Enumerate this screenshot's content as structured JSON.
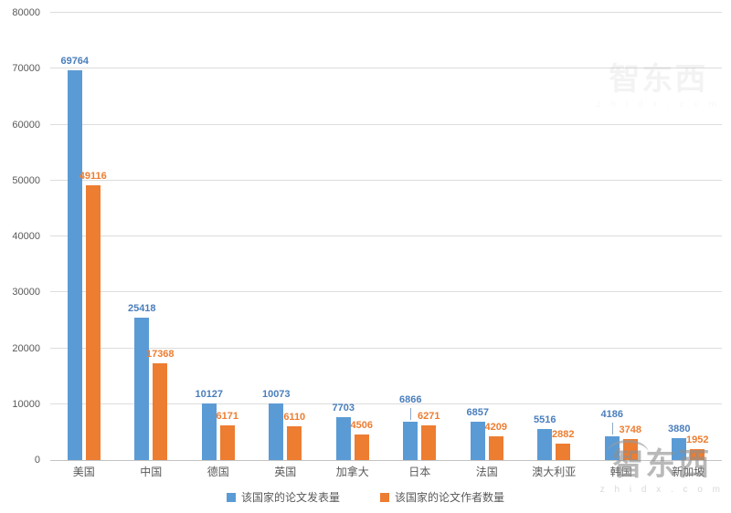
{
  "chart_data": {
    "type": "bar",
    "title": "",
    "categories": [
      "美国",
      "中国",
      "德国",
      "英国",
      "加拿大",
      "日本",
      "法国",
      "澳大利亚",
      "韩国",
      "新加坡"
    ],
    "series": [
      {
        "name": "该国家的论文发表量",
        "color": "#5b9bd5",
        "label_color": "#4a7ebc",
        "values": [
          69764,
          25418,
          10127,
          10073,
          7703,
          6866,
          6857,
          5516,
          4186,
          3880
        ]
      },
      {
        "name": "该国家的论文作者数量",
        "color": "#ed7d31",
        "label_color": "#ed7d31",
        "values": [
          49116,
          17368,
          6171,
          6110,
          4506,
          6271,
          4209,
          2882,
          3748,
          1952
        ]
      }
    ],
    "ylim": [
      0,
      80000
    ],
    "ytick_step": 10000,
    "yticks": [
      "0",
      "10000",
      "20000",
      "30000",
      "40000",
      "50000",
      "60000",
      "70000",
      "80000"
    ],
    "grid": true,
    "legend_position": "bottom",
    "leader_label_categories": [
      "日本",
      "韩国"
    ]
  },
  "colors": {
    "grid": "#dcdcdc",
    "axis_line": "#c3c3c3",
    "tick_text": "#595959",
    "leader_line": "#8ea9c8"
  },
  "watermark": {
    "logo_text": "智东西",
    "domain_text": "z h i d x . c o m"
  }
}
